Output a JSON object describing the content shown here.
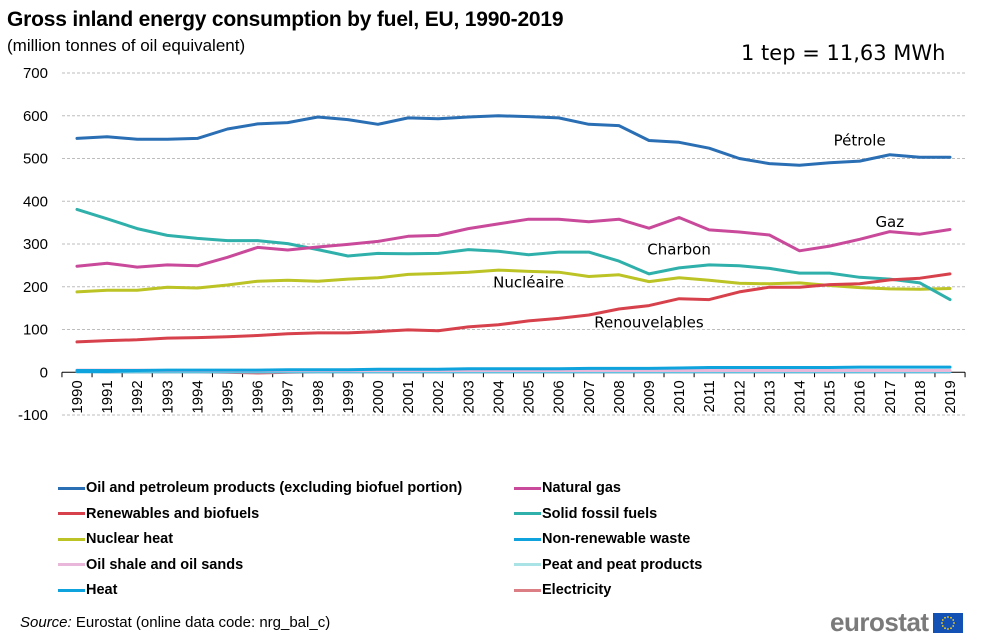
{
  "header": {
    "title": "Gross inland energy consumption by fuel, EU, 1990-2019",
    "subtitle": "(million tonnes of oil equivalent)",
    "conversion_note": "1 tep = 11,63 MWh"
  },
  "footer": {
    "source_label": "Source:",
    "source_text": " Eurostat (online data code: nrg_bal_c)",
    "logo_text": "eurostat"
  },
  "chart_data": {
    "type": "line",
    "title": "Gross inland energy consumption by fuel, EU, 1990-2019",
    "subtitle": "(million tonnes of oil equivalent)",
    "xlabel": "",
    "ylabel": "",
    "ylim": [
      -100,
      700
    ],
    "yticks": [
      -100,
      0,
      100,
      200,
      300,
      400,
      500,
      600,
      700
    ],
    "ytick_labels": [
      "-100",
      "0",
      "100",
      "200",
      "300",
      "400",
      "500",
      "600",
      "700"
    ],
    "grid": true,
    "legend_position": "bottom",
    "x": [
      "1990",
      "1991",
      "1992",
      "1993",
      "1994",
      "1995",
      "1996",
      "1997",
      "1998",
      "1999",
      "2000",
      "2001",
      "2002",
      "2003",
      "2004",
      "2005",
      "2006",
      "2007",
      "2008",
      "2009",
      "2010",
      "2011",
      "2012",
      "2013",
      "2014",
      "2015",
      "2016",
      "2017",
      "2018",
      "2019"
    ],
    "series": [
      {
        "name": "Oil and petroleum products (excluding biofuel portion)",
        "color": "#2a6eb4",
        "values": [
          547,
          551,
          545,
          545,
          547,
          569,
          581,
          584,
          597,
          591,
          580,
          595,
          593,
          597,
          600,
          598,
          595,
          580,
          577,
          542,
          538,
          524,
          500,
          488,
          484,
          490,
          494,
          509,
          503,
          503
        ]
      },
      {
        "name": "Natural gas",
        "color": "#c94a9a",
        "values": [
          248,
          255,
          246,
          251,
          249,
          269,
          292,
          286,
          293,
          299,
          306,
          318,
          320,
          336,
          347,
          358,
          358,
          352,
          358,
          337,
          362,
          333,
          328,
          321,
          284,
          295,
          311,
          329,
          323,
          334
        ]
      },
      {
        "name": "Renewables and biofuels",
        "color": "#d7414b",
        "values": [
          71,
          74,
          76,
          80,
          81,
          83,
          86,
          90,
          92,
          92,
          95,
          99,
          97,
          106,
          111,
          120,
          126,
          134,
          148,
          156,
          172,
          170,
          188,
          199,
          199,
          205,
          207,
          216,
          220,
          230
        ]
      },
      {
        "name": "Solid fossil fuels",
        "color": "#2fb0ab",
        "values": [
          381,
          359,
          336,
          320,
          313,
          308,
          308,
          301,
          287,
          272,
          278,
          277,
          278,
          287,
          283,
          275,
          281,
          281,
          260,
          230,
          244,
          251,
          249,
          243,
          232,
          232,
          222,
          218,
          209,
          170
        ]
      },
      {
        "name": "Nuclear heat",
        "color": "#bcc324",
        "values": [
          188,
          192,
          192,
          199,
          197,
          204,
          213,
          215,
          213,
          218,
          221,
          229,
          231,
          234,
          239,
          236,
          234,
          224,
          228,
          212,
          221,
          215,
          208,
          207,
          209,
          203,
          198,
          195,
          194,
          196
        ]
      },
      {
        "name": "Non-renewable waste",
        "color": "#0ea3dc",
        "values": [
          4,
          4,
          4,
          5,
          5,
          5,
          5,
          6,
          6,
          6,
          7,
          7,
          7,
          8,
          8,
          8,
          8,
          9,
          9,
          9,
          10,
          11,
          11,
          11,
          11,
          11,
          12,
          12,
          12,
          12
        ]
      },
      {
        "name": "Oil shale and oil sands",
        "color": "#e9b7da",
        "values": [
          5,
          5,
          5,
          4,
          4,
          4,
          4,
          4,
          4,
          4,
          4,
          4,
          4,
          4,
          4,
          4,
          4,
          4,
          4,
          4,
          4,
          4,
          4,
          4,
          4,
          4,
          4,
          4,
          4,
          4
        ]
      },
      {
        "name": "Peat and peat products",
        "color": "#a9e3e6",
        "values": [
          4,
          4,
          3,
          3,
          3,
          3,
          3,
          3,
          3,
          3,
          3,
          3,
          3,
          3,
          3,
          3,
          3,
          3,
          3,
          3,
          3,
          3,
          3,
          3,
          3,
          3,
          3,
          3,
          3,
          3
        ]
      },
      {
        "name": "Heat",
        "color": "#0ea3dc",
        "values": [
          1,
          1,
          1,
          1,
          1,
          1,
          1,
          1,
          1,
          1,
          1,
          1,
          1,
          1,
          1,
          1,
          1,
          1,
          1,
          1,
          1,
          1,
          1,
          1,
          1,
          1,
          1,
          1,
          1,
          1
        ]
      },
      {
        "name": "Electricity",
        "color": "#db7f84",
        "values": [
          2,
          1,
          1,
          1,
          1,
          0,
          -2,
          0,
          1,
          1,
          1,
          1,
          1,
          1,
          1,
          1,
          1,
          1,
          1,
          1,
          1,
          1,
          1,
          1,
          1,
          1,
          1,
          1,
          1,
          1
        ]
      }
    ],
    "annotations": [
      {
        "text": "Pétrole",
        "x": "2016",
        "y": 530
      },
      {
        "text": "Gaz",
        "x": "2017",
        "y": 340
      },
      {
        "text": "Charbon",
        "x": "2010",
        "y": 275
      },
      {
        "text": "Nucléaire",
        "x": "2005",
        "y": 198
      },
      {
        "text": "Renouvelables",
        "x": "2009",
        "y": 105
      }
    ]
  }
}
